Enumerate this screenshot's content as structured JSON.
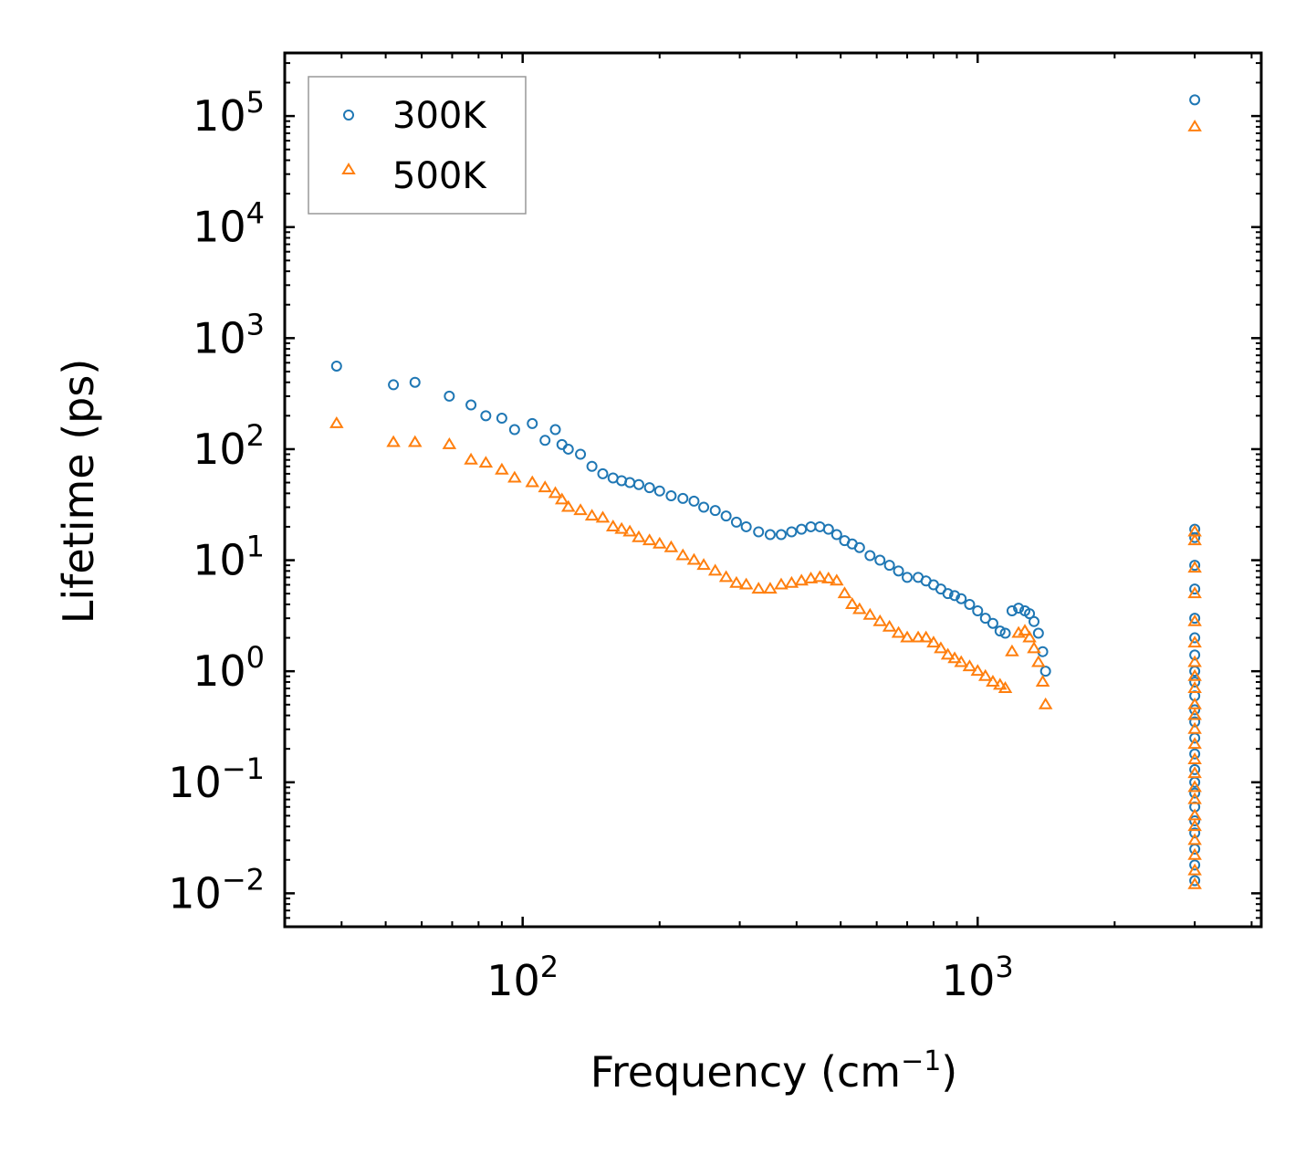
{
  "chart_data": {
    "type": "scatter",
    "xscale": "log",
    "yscale": "log",
    "xlim": [
      30,
      4200
    ],
    "ylim": [
      0.005,
      370000
    ],
    "xlabel": "Frequency (cm",
    "xlabel_sup": "−1",
    "xlabel_end": ")",
    "ylabel": "Lifetime (ps)",
    "x_ticks": [
      {
        "value": 100,
        "base": "10",
        "exp": "2"
      },
      {
        "value": 1000,
        "base": "10",
        "exp": "3"
      }
    ],
    "y_ticks": [
      {
        "value": 100000,
        "base": "10",
        "exp": "5"
      },
      {
        "value": 10000,
        "base": "10",
        "exp": "4"
      },
      {
        "value": 1000,
        "base": "10",
        "exp": "3"
      },
      {
        "value": 100,
        "base": "10",
        "exp": "2"
      },
      {
        "value": 10,
        "base": "10",
        "exp": "1"
      },
      {
        "value": 1,
        "base": "10",
        "exp": "0"
      },
      {
        "value": 0.1,
        "base": "10",
        "exp": "−1"
      },
      {
        "value": 0.01,
        "base": "10",
        "exp": "−2"
      }
    ],
    "legend_position": "top-left",
    "series": [
      {
        "name": "300K",
        "marker": "circle",
        "color": "#1f77b4",
        "x": [
          39,
          52,
          58,
          69,
          77,
          83,
          90,
          96,
          105,
          112,
          118,
          122,
          126,
          134,
          142,
          150,
          158,
          165,
          172,
          180,
          190,
          200,
          212,
          225,
          238,
          250,
          265,
          280,
          295,
          310,
          330,
          350,
          370,
          390,
          410,
          430,
          450,
          470,
          490,
          510,
          530,
          550,
          580,
          610,
          640,
          670,
          700,
          740,
          770,
          800,
          830,
          860,
          890,
          920,
          960,
          1000,
          1040,
          1080,
          1120,
          1150,
          1190,
          1230,
          1270,
          1300,
          1330,
          1360,
          1390,
          1410
        ],
        "y": [
          560,
          380,
          400,
          300,
          250,
          200,
          190,
          150,
          170,
          120,
          150,
          110,
          100,
          90,
          70,
          60,
          55,
          52,
          50,
          48,
          45,
          42,
          38,
          36,
          34,
          30,
          28,
          25,
          22,
          20,
          18,
          17,
          17,
          18,
          19,
          20,
          20,
          19,
          17,
          15,
          14,
          13,
          11,
          10,
          9,
          8,
          7,
          7,
          6.5,
          6,
          5.5,
          5,
          4.8,
          4.5,
          4,
          3.5,
          3,
          2.7,
          2.3,
          2.2,
          3.5,
          3.7,
          3.5,
          3.3,
          2.8,
          2.2,
          1.5,
          1.0
        ],
        "x_high": [
          3000,
          3000,
          3000,
          3000,
          3000,
          3000,
          3000,
          3000,
          3000,
          3000,
          3000,
          3000,
          3000,
          3000,
          3000,
          3000,
          3000,
          3000,
          3000,
          3000,
          3000,
          3000,
          3000,
          3000
        ],
        "y_high": [
          140000,
          19,
          16,
          9,
          5.5,
          3,
          2,
          1.4,
          1.0,
          0.8,
          0.6,
          0.45,
          0.35,
          0.25,
          0.18,
          0.13,
          0.1,
          0.08,
          0.06,
          0.045,
          0.035,
          0.025,
          0.018,
          0.013
        ]
      },
      {
        "name": "500K",
        "marker": "triangle",
        "color": "#ff7f0e",
        "x": [
          39,
          52,
          58,
          69,
          77,
          83,
          90,
          96,
          105,
          112,
          118,
          122,
          126,
          134,
          142,
          150,
          158,
          165,
          172,
          180,
          190,
          200,
          212,
          225,
          238,
          250,
          265,
          280,
          295,
          310,
          330,
          350,
          370,
          390,
          410,
          430,
          450,
          470,
          490,
          510,
          530,
          550,
          580,
          610,
          640,
          670,
          700,
          740,
          770,
          800,
          830,
          860,
          890,
          920,
          960,
          1000,
          1040,
          1080,
          1120,
          1150,
          1190,
          1230,
          1270,
          1300,
          1330,
          1360,
          1390,
          1410
        ],
        "y": [
          170,
          115,
          115,
          110,
          80,
          75,
          65,
          55,
          50,
          45,
          40,
          35,
          30,
          28,
          25,
          24,
          20,
          19,
          18,
          16,
          15,
          14,
          13,
          11,
          10,
          9,
          8,
          7,
          6.2,
          6,
          5.5,
          5.5,
          6,
          6.2,
          6.5,
          6.8,
          7,
          6.8,
          6.5,
          5,
          4,
          3.6,
          3.2,
          2.8,
          2.5,
          2.2,
          2,
          2,
          2,
          1.8,
          1.6,
          1.4,
          1.3,
          1.2,
          1.1,
          1.0,
          0.9,
          0.8,
          0.75,
          0.7,
          1.5,
          2.2,
          2.3,
          2.0,
          1.6,
          1.2,
          0.8,
          0.5
        ],
        "x_high": [
          3000,
          3000,
          3000,
          3000,
          3000,
          3000,
          3000,
          3000,
          3000,
          3000,
          3000,
          3000,
          3000,
          3000,
          3000,
          3000,
          3000,
          3000,
          3000,
          3000,
          3000,
          3000,
          3000,
          3000
        ],
        "y_high": [
          80000,
          18,
          15,
          8.5,
          5,
          2.8,
          1.8,
          1.2,
          0.9,
          0.7,
          0.5,
          0.4,
          0.3,
          0.22,
          0.16,
          0.12,
          0.09,
          0.07,
          0.05,
          0.04,
          0.03,
          0.022,
          0.016,
          0.012
        ]
      }
    ]
  }
}
